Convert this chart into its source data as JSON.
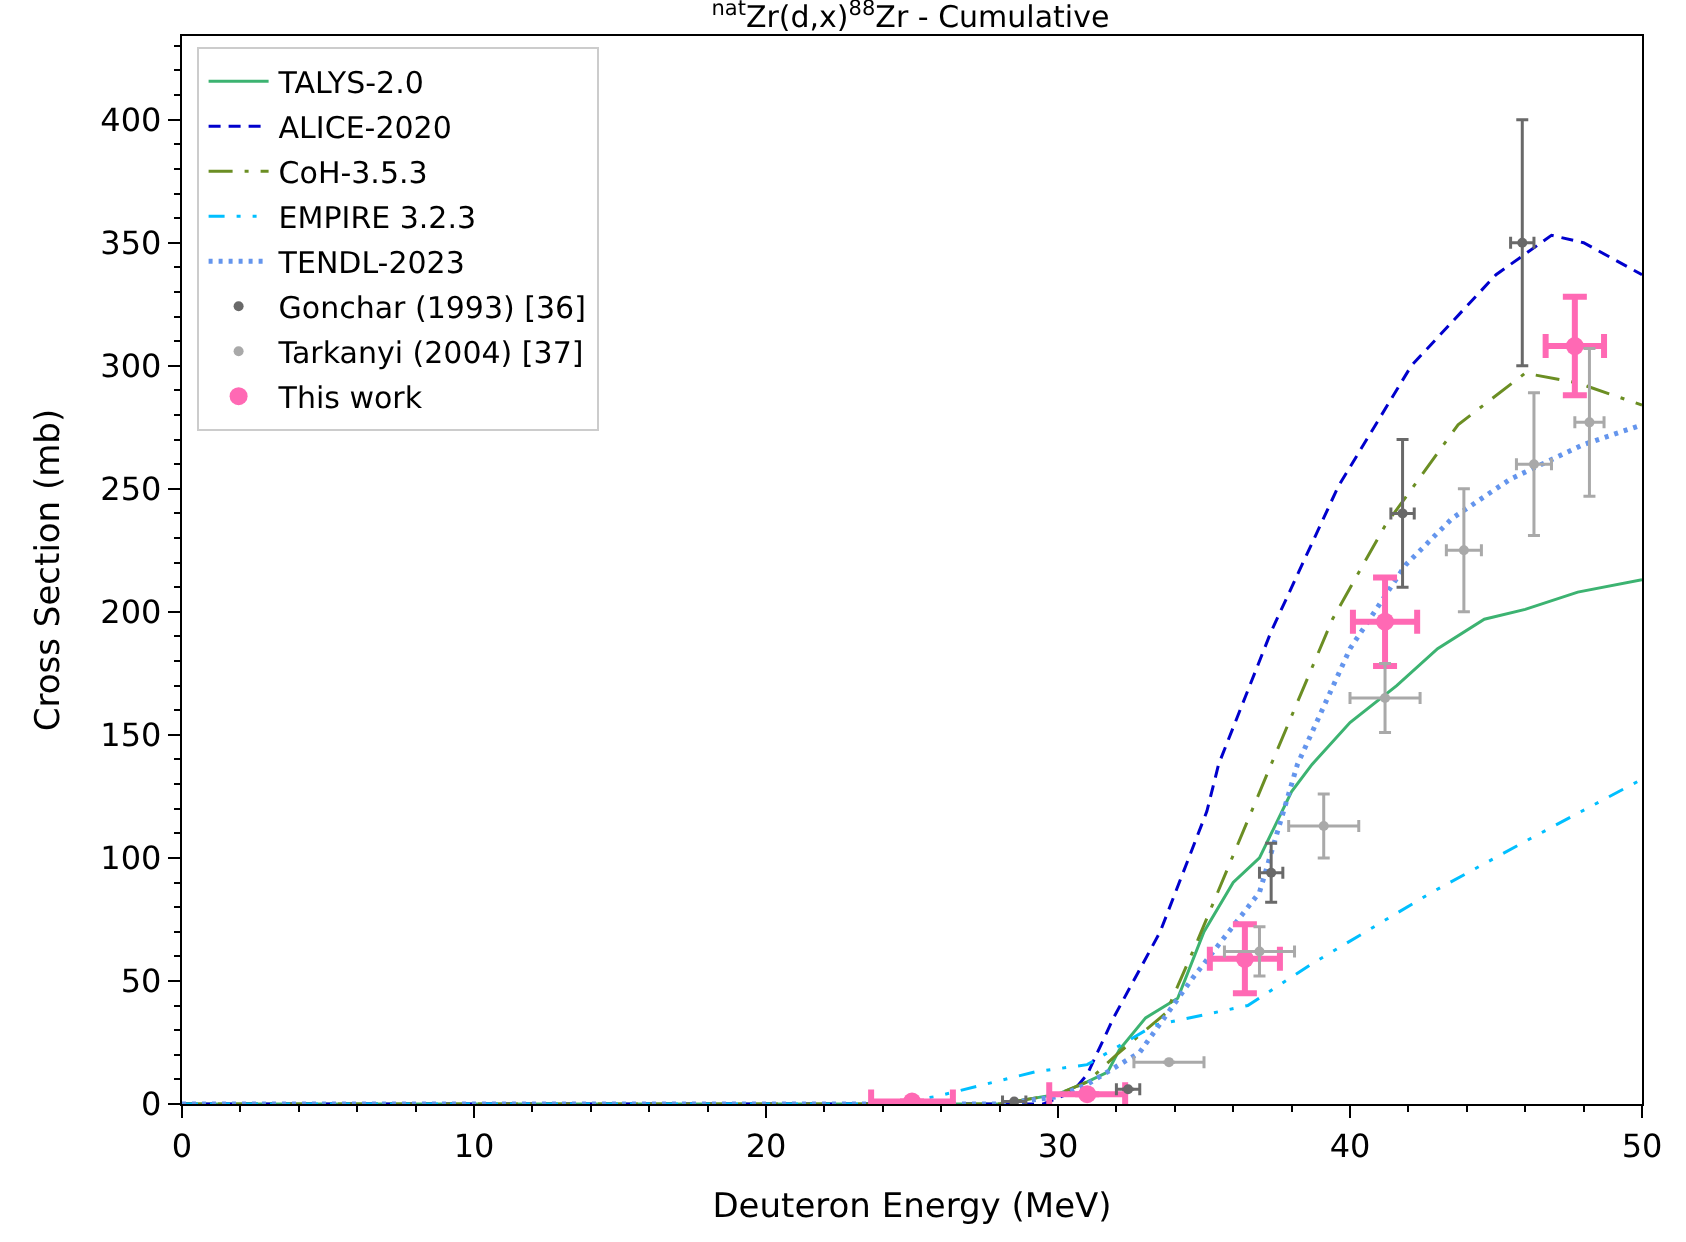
{
  "chart_data": {
    "type": "line",
    "title": "$^{nat}$Zr(d,x)$^{88}$Zr - Cumulative",
    "xlabel": "Deuteron Energy (MeV)",
    "ylabel": "Cross Section (mb)",
    "xlim": [
      0,
      50
    ],
    "ylim": [
      0,
      434
    ],
    "xticks": [
      0,
      10,
      20,
      30,
      40,
      50
    ],
    "yticks": [
      0,
      50,
      100,
      150,
      200,
      250,
      300,
      350,
      400
    ],
    "grid": false,
    "legend": "top left",
    "series": [
      {
        "name": "TALYS-2.0",
        "color": "#3cb371",
        "line_style": "solid",
        "marker": "none",
        "x": [
          0,
          28,
          30,
          31,
          31.7,
          32.1,
          33,
          34.1,
          35,
          36,
          36.9,
          38,
          38.7,
          40,
          41.6,
          43,
          44.6,
          46,
          47.8,
          50
        ],
        "values": [
          0,
          0,
          4,
          9,
          13,
          22,
          35,
          43,
          70,
          90,
          100,
          127,
          138,
          155,
          170,
          185,
          197,
          201,
          208,
          213
        ]
      },
      {
        "name": "ALICE-2020",
        "color": "#0000cd",
        "line_style": "dashed",
        "marker": "none",
        "x": [
          0,
          29.5,
          30.5,
          31,
          31.9,
          33.5,
          35.1,
          35.5,
          37.3,
          39.6,
          42.1,
          45,
          46.9,
          48,
          50
        ],
        "values": [
          0,
          0,
          5,
          12,
          35,
          70,
          119,
          138,
          192,
          251,
          300,
          337,
          353,
          350,
          337
        ]
      },
      {
        "name": "CoH-3.5.3",
        "color": "#6b8e23",
        "line_style": "dashdot",
        "marker": "none",
        "x": [
          0,
          28,
          30,
          31,
          32,
          33.7,
          34.8,
          37.3,
          39.4,
          41.2,
          43.7,
          46,
          47.8,
          50
        ],
        "values": [
          0,
          0,
          4,
          9,
          20,
          37,
          67,
          138,
          197,
          235,
          276,
          297,
          293,
          284
        ]
      },
      {
        "name": "EMPIRE 3.2.3",
        "color": "#00bfff",
        "line_style": "dashdotdot",
        "marker": "none",
        "x": [
          0,
          24,
          25.8,
          29.2,
          31,
          33.3,
          36.5,
          38.7,
          42.8,
          46.2,
          50
        ],
        "values": [
          0,
          0,
          3,
          13,
          16,
          32,
          40,
          57,
          86,
          108,
          132
        ]
      },
      {
        "name": "TENDL-2023",
        "color": "#6495ed",
        "line_style": "dotted",
        "marker": "none",
        "x": [
          0,
          28,
          30,
          31,
          32.8,
          34.6,
          36.9,
          38.2,
          40,
          41.9,
          43.5,
          45.5,
          48,
          50
        ],
        "values": [
          0,
          0,
          3,
          8,
          21,
          51,
          86,
          138,
          185,
          219,
          238,
          254,
          268,
          276
        ]
      },
      {
        "name": "Gonchar (1993) [36]",
        "type": "scatter",
        "color": "#696969",
        "marker": "circle",
        "x": [
          28.5,
          32.4,
          37.3,
          41.8,
          45.9
        ],
        "values": [
          1,
          6,
          94,
          240,
          350
        ],
        "errors": [
          null,
          null,
          12,
          30,
          50
        ],
        "xerrors": [
          0.4,
          0.4,
          0.4,
          0.4,
          0.4
        ]
      },
      {
        "name": "Tarkanyi (2004) [37]",
        "type": "scatter",
        "color": "#a9a9a9",
        "marker": "circle",
        "x": [
          33.8,
          36.9,
          39.1,
          41.2,
          43.9,
          46.3,
          48.2
        ],
        "values": [
          17,
          62,
          113,
          165,
          225,
          260,
          277
        ],
        "errors": [
          null,
          10,
          13,
          14,
          25,
          29,
          30
        ],
        "xerrors": [
          1.2,
          1.2,
          1.2,
          1.2,
          0.6,
          0.6,
          0.5
        ]
      },
      {
        "name": "This work",
        "type": "scatter",
        "color": "#ff69b4",
        "marker": "circle",
        "x": [
          25,
          31,
          36.4,
          41.2,
          47.7
        ],
        "values": [
          1,
          4,
          59,
          196,
          308
        ],
        "errors": [
          null,
          null,
          14,
          18,
          20
        ],
        "xerrors": [
          1.4,
          1.3,
          1.2,
          1.1,
          1
        ]
      }
    ]
  }
}
